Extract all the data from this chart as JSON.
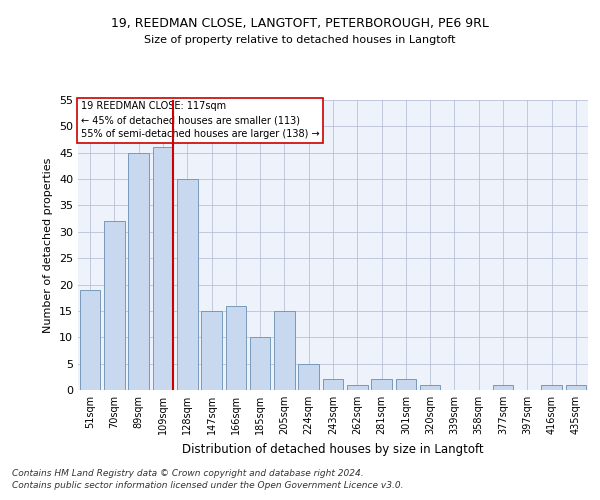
{
  "title1": "19, REEDMAN CLOSE, LANGTOFT, PETERBOROUGH, PE6 9RL",
  "title2": "Size of property relative to detached houses in Langtoft",
  "xlabel": "Distribution of detached houses by size in Langtoft",
  "ylabel": "Number of detached properties",
  "categories": [
    "51sqm",
    "70sqm",
    "89sqm",
    "109sqm",
    "128sqm",
    "147sqm",
    "166sqm",
    "185sqm",
    "205sqm",
    "224sqm",
    "243sqm",
    "262sqm",
    "281sqm",
    "301sqm",
    "320sqm",
    "339sqm",
    "358sqm",
    "377sqm",
    "397sqm",
    "416sqm",
    "435sqm"
  ],
  "values": [
    19,
    32,
    45,
    46,
    40,
    15,
    16,
    10,
    15,
    5,
    2,
    1,
    2,
    2,
    1,
    0,
    0,
    1,
    0,
    1,
    1
  ],
  "bar_color": "#c8d8ee",
  "bar_edge_color": "#7799bb",
  "highlight_index": 3,
  "highlight_color": "#cc0000",
  "annotation_title": "19 REEDMAN CLOSE: 117sqm",
  "annotation_line1": "← 45% of detached houses are smaller (113)",
  "annotation_line2": "55% of semi-detached houses are larger (138) →",
  "annotation_box_color": "#ffffff",
  "annotation_box_edge": "#cc0000",
  "ylim": [
    0,
    55
  ],
  "yticks": [
    0,
    5,
    10,
    15,
    20,
    25,
    30,
    35,
    40,
    45,
    50,
    55
  ],
  "footnote1": "Contains HM Land Registry data © Crown copyright and database right 2024.",
  "footnote2": "Contains public sector information licensed under the Open Government Licence v3.0.",
  "background_color": "#eef2fa"
}
